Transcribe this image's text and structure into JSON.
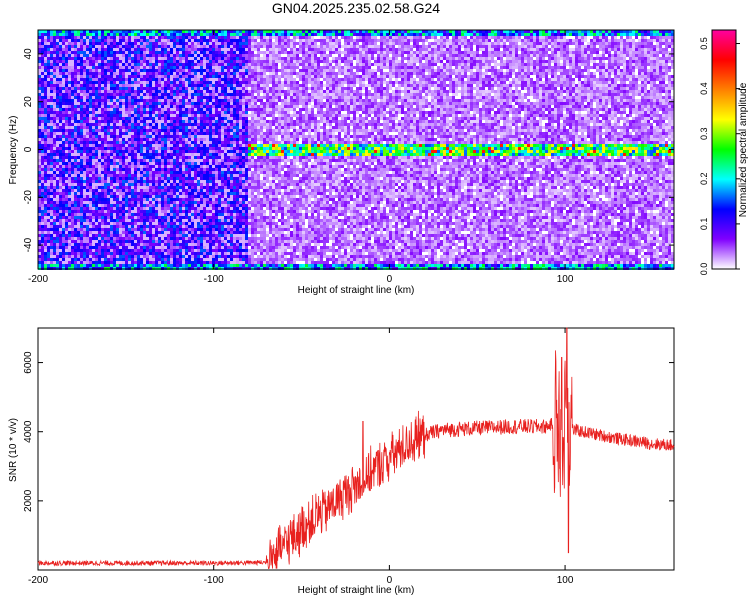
{
  "figure": {
    "title": "GN04.2025.235.02.58.G24"
  },
  "chart_data": [
    {
      "type": "heatmap",
      "xlabel": "Height of straight line (km)",
      "ylabel": "Frequency (Hz)",
      "xlim": [
        -200,
        162
      ],
      "ylim": [
        -50,
        50
      ],
      "xticks": [
        -200,
        -100,
        0,
        100
      ],
      "yticks": [
        -40,
        -20,
        0,
        20,
        40
      ],
      "grid": false,
      "colorbar": {
        "label": "Normalized spectral amplitude",
        "range": [
          0,
          0.53
        ],
        "ticks": [
          0.0,
          0.1,
          0.2,
          0.3,
          0.4,
          0.5
        ],
        "tick_labels": [
          "0.0",
          "0.1",
          "0.2",
          "0.3",
          "0.4",
          "0.5"
        ],
        "colormap": [
          "#ffffff",
          "#8000ff",
          "#0000ff",
          "#00ffff",
          "#00ff00",
          "#ffff00",
          "#ff8000",
          "#ff0000",
          "#ff00a0"
        ]
      },
      "features": {
        "noise_region_x": [
          -200,
          -80
        ],
        "noise_region_level": 0.1,
        "quiet_region_x": [
          -80,
          162
        ],
        "quiet_region_level": 0.04,
        "carrier_line": {
          "frequency": 0,
          "x_start": -80,
          "x_end": 162,
          "level": 0.25,
          "peak_level": 0.45
        },
        "edge_lines": [
          {
            "frequency": 49,
            "level": 0.2
          },
          {
            "frequency": -49,
            "level": 0.2
          }
        ]
      }
    },
    {
      "type": "line",
      "xlabel": "Height of straight line (km)",
      "ylabel": "SNR (10 * v/v)",
      "xlim": [
        -200,
        162
      ],
      "ylim": [
        0,
        7000
      ],
      "xticks": [
        -200,
        -100,
        0,
        100
      ],
      "yticks": [
        2000,
        4000,
        6000
      ],
      "grid": false,
      "color": "#e8201e",
      "profile": {
        "x": [
          -200,
          -150,
          -100,
          -70,
          -60,
          -50,
          -40,
          -30,
          -20,
          -10,
          0,
          10,
          20,
          30,
          50,
          70,
          90,
          95,
          100,
          105,
          110,
          130,
          150,
          162
        ],
        "y": [
          200,
          200,
          200,
          220,
          700,
          1200,
          1600,
          2000,
          2400,
          2850,
          3250,
          3650,
          3900,
          4050,
          4100,
          4150,
          4150,
          4300,
          4200,
          4050,
          4000,
          3800,
          3650,
          3600
        ],
        "spikes": [
          {
            "x": 98,
            "y": 6150
          },
          {
            "x": 101,
            "y": 7000
          },
          {
            "x": 102,
            "y": 500
          },
          {
            "x": -15,
            "y": 4300
          }
        ]
      }
    }
  ]
}
